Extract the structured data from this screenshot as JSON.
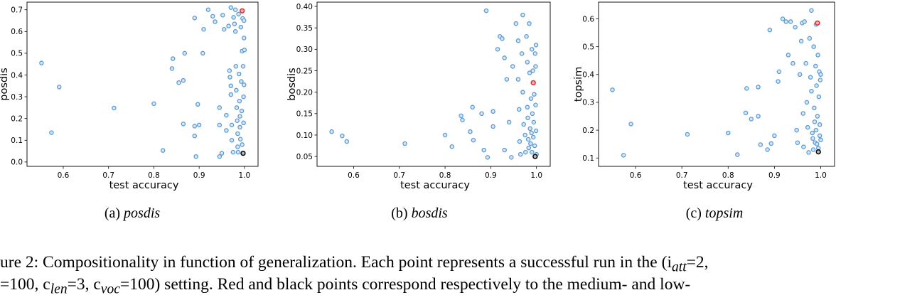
{
  "figure": {
    "caption_line1": "ure 2: Compositionality in function of generalization. Each point represents a successful run in the (i",
    "caption_line1_sub": "att",
    "caption_line1_end": "=2,",
    "caption_line2": "=100, c",
    "caption_line2_sub1": "len",
    "caption_line2_mid": "=3, c",
    "caption_line2_sub2": "voc",
    "caption_line2_end": "=100) setting. Red and black points correspond respectively to the medium- and low-"
  },
  "colors": {
    "point": "#5b9bd5",
    "point_fill": "#d7e7f7",
    "medium": "#e8262c",
    "low": "#000000"
  },
  "chart_data": [
    {
      "type": "scatter",
      "panel": "a",
      "subcaption_prefix": "(a)",
      "subcaption_name": "posdis",
      "xlabel": "test accuracy",
      "ylabel": "posdis",
      "xlim": [
        0.52,
        1.03
      ],
      "ylim": [
        -0.02,
        0.735
      ],
      "xticks": [
        0.6,
        0.7,
        0.8,
        0.9,
        1.0
      ],
      "yticks": [
        0.0,
        0.1,
        0.2,
        0.3,
        0.4,
        0.5,
        0.6,
        0.7
      ],
      "points": [
        [
          0.552,
          0.455
        ],
        [
          0.591,
          0.345
        ],
        [
          0.574,
          0.135
        ],
        [
          0.712,
          0.248
        ],
        [
          0.8,
          0.268
        ],
        [
          0.82,
          0.053
        ],
        [
          0.842,
          0.475
        ],
        [
          0.84,
          0.43
        ],
        [
          0.855,
          0.365
        ],
        [
          0.865,
          0.375
        ],
        [
          0.868,
          0.5
        ],
        [
          0.865,
          0.175
        ],
        [
          0.89,
          0.165
        ],
        [
          0.89,
          0.12
        ],
        [
          0.893,
          0.025
        ],
        [
          0.897,
          0.265
        ],
        [
          0.9,
          0.17
        ],
        [
          0.908,
          0.5
        ],
        [
          0.89,
          0.662
        ],
        [
          0.91,
          0.61
        ],
        [
          0.92,
          0.7
        ],
        [
          0.93,
          0.67
        ],
        [
          0.935,
          0.645
        ],
        [
          0.945,
          0.25
        ],
        [
          0.945,
          0.17
        ],
        [
          0.945,
          0.025
        ],
        [
          0.95,
          0.04
        ],
        [
          0.952,
          0.675
        ],
        [
          0.955,
          0.61
        ],
        [
          0.96,
          0.215
        ],
        [
          0.96,
          0.145
        ],
        [
          0.965,
          0.625
        ],
        [
          0.967,
          0.42
        ],
        [
          0.968,
          0.39
        ],
        [
          0.97,
          0.71
        ],
        [
          0.97,
          0.35
        ],
        [
          0.97,
          0.31
        ],
        [
          0.972,
          0.17
        ],
        [
          0.972,
          0.1
        ],
        [
          0.975,
          0.045
        ],
        [
          0.976,
          0.665
        ],
        [
          0.978,
          0.635
        ],
        [
          0.98,
          0.7
        ],
        [
          0.98,
          0.6
        ],
        [
          0.981,
          0.44
        ],
        [
          0.982,
          0.33
        ],
        [
          0.983,
          0.25
        ],
        [
          0.984,
          0.19
        ],
        [
          0.985,
          0.13
        ],
        [
          0.985,
          0.07
        ],
        [
          0.986,
          0.045
        ],
        [
          0.987,
          0.68
        ],
        [
          0.988,
          0.405
        ],
        [
          0.989,
          0.28
        ],
        [
          0.99,
          0.21
        ],
        [
          0.99,
          0.16
        ],
        [
          0.991,
          0.105
        ],
        [
          0.992,
          0.62
        ],
        [
          0.993,
          0.37
        ],
        [
          0.994,
          0.235
        ],
        [
          0.995,
          0.51
        ],
        [
          0.995,
          0.08
        ],
        [
          0.996,
          0.66
        ],
        [
          0.997,
          0.44
        ],
        [
          0.998,
          0.3
        ],
        [
          0.998,
          0.18
        ],
        [
          0.999,
          0.65
        ],
        [
          0.999,
          0.57
        ],
        [
          0.999,
          0.355
        ],
        [
          1.0,
          0.515
        ]
      ],
      "highlight_medium": [
        0.995,
        0.695
      ],
      "highlight_low": [
        0.997,
        0.04
      ]
    },
    {
      "type": "scatter",
      "panel": "b",
      "subcaption_prefix": "(b)",
      "subcaption_name": "bosdis",
      "xlabel": "test accuracy",
      "ylabel": "bosdis",
      "xlim": [
        0.52,
        1.03
      ],
      "ylim": [
        0.027,
        0.41
      ],
      "xticks": [
        0.6,
        0.7,
        0.8,
        0.9,
        1.0
      ],
      "yticks": [
        0.05,
        0.1,
        0.15,
        0.2,
        0.25,
        0.3,
        0.35,
        0.4
      ],
      "points": [
        [
          0.552,
          0.108
        ],
        [
          0.575,
          0.098
        ],
        [
          0.585,
          0.085
        ],
        [
          0.712,
          0.08
        ],
        [
          0.8,
          0.1
        ],
        [
          0.815,
          0.073
        ],
        [
          0.835,
          0.145
        ],
        [
          0.838,
          0.135
        ],
        [
          0.86,
          0.165
        ],
        [
          0.855,
          0.108
        ],
        [
          0.862,
          0.088
        ],
        [
          0.88,
          0.15
        ],
        [
          0.885,
          0.065
        ],
        [
          0.89,
          0.39
        ],
        [
          0.893,
          0.048
        ],
        [
          0.905,
          0.155
        ],
        [
          0.905,
          0.12
        ],
        [
          0.915,
          0.3
        ],
        [
          0.92,
          0.33
        ],
        [
          0.925,
          0.325
        ],
        [
          0.93,
          0.28
        ],
        [
          0.93,
          0.065
        ],
        [
          0.935,
          0.23
        ],
        [
          0.94,
          0.13
        ],
        [
          0.945,
          0.048
        ],
        [
          0.948,
          0.26
        ],
        [
          0.955,
          0.36
        ],
        [
          0.96,
          0.32
        ],
        [
          0.96,
          0.23
        ],
        [
          0.962,
          0.16
        ],
        [
          0.963,
          0.085
        ],
        [
          0.965,
          0.055
        ],
        [
          0.968,
          0.29
        ],
        [
          0.97,
          0.38
        ],
        [
          0.97,
          0.2
        ],
        [
          0.972,
          0.125
        ],
        [
          0.975,
          0.1
        ],
        [
          0.976,
          0.06
        ],
        [
          0.978,
          0.33
        ],
        [
          0.98,
          0.27
        ],
        [
          0.98,
          0.165
        ],
        [
          0.981,
          0.14
        ],
        [
          0.982,
          0.09
        ],
        [
          0.983,
          0.07
        ],
        [
          0.984,
          0.36
        ],
        [
          0.985,
          0.245
        ],
        [
          0.986,
          0.115
        ],
        [
          0.987,
          0.08
        ],
        [
          0.988,
          0.185
        ],
        [
          0.989,
          0.105
        ],
        [
          0.99,
          0.3
        ],
        [
          0.99,
          0.06
        ],
        [
          0.991,
          0.15
        ],
        [
          0.992,
          0.25
        ],
        [
          0.993,
          0.095
        ],
        [
          0.994,
          0.13
        ],
        [
          0.995,
          0.195
        ],
        [
          0.996,
          0.075
        ],
        [
          0.997,
          0.29
        ],
        [
          0.998,
          0.26
        ],
        [
          0.998,
          0.17
        ],
        [
          0.999,
          0.31
        ],
        [
          0.999,
          0.11
        ],
        [
          1.0,
          0.055
        ]
      ],
      "highlight_medium": [
        0.993,
        0.222
      ],
      "highlight_low": [
        0.997,
        0.05
      ]
    },
    {
      "type": "scatter",
      "panel": "c",
      "subcaption_prefix": "(c)",
      "subcaption_name": "topsim",
      "xlabel": "test accuracy",
      "ylabel": "topsim",
      "xlim": [
        0.52,
        1.03
      ],
      "ylim": [
        0.07,
        0.66
      ],
      "xticks": [
        0.6,
        0.7,
        0.8,
        0.9,
        1.0
      ],
      "yticks": [
        0.1,
        0.2,
        0.3,
        0.4,
        0.5,
        0.6
      ],
      "points": [
        [
          0.55,
          0.345
        ],
        [
          0.574,
          0.11
        ],
        [
          0.59,
          0.222
        ],
        [
          0.712,
          0.185
        ],
        [
          0.8,
          0.19
        ],
        [
          0.82,
          0.112
        ],
        [
          0.838,
          0.262
        ],
        [
          0.84,
          0.35
        ],
        [
          0.85,
          0.24
        ],
        [
          0.865,
          0.355
        ],
        [
          0.865,
          0.25
        ],
        [
          0.87,
          0.148
        ],
        [
          0.885,
          0.13
        ],
        [
          0.89,
          0.56
        ],
        [
          0.893,
          0.152
        ],
        [
          0.9,
          0.18
        ],
        [
          0.908,
          0.375
        ],
        [
          0.91,
          0.41
        ],
        [
          0.918,
          0.6
        ],
        [
          0.925,
          0.59
        ],
        [
          0.93,
          0.47
        ],
        [
          0.935,
          0.59
        ],
        [
          0.94,
          0.44
        ],
        [
          0.945,
          0.57
        ],
        [
          0.948,
          0.2
        ],
        [
          0.95,
          0.155
        ],
        [
          0.955,
          0.4
        ],
        [
          0.958,
          0.52
        ],
        [
          0.96,
          0.585
        ],
        [
          0.962,
          0.26
        ],
        [
          0.963,
          0.14
        ],
        [
          0.965,
          0.59
        ],
        [
          0.968,
          0.44
        ],
        [
          0.97,
          0.3
        ],
        [
          0.972,
          0.21
        ],
        [
          0.974,
          0.12
        ],
        [
          0.976,
          0.53
        ],
        [
          0.978,
          0.39
        ],
        [
          0.98,
          0.63
        ],
        [
          0.98,
          0.34
        ],
        [
          0.982,
          0.19
        ],
        [
          0.983,
          0.17
        ],
        [
          0.984,
          0.13
        ],
        [
          0.985,
          0.5
        ],
        [
          0.986,
          0.28
        ],
        [
          0.987,
          0.23
        ],
        [
          0.988,
          0.155
        ],
        [
          0.989,
          0.43
        ],
        [
          0.99,
          0.58
        ],
        [
          0.99,
          0.2
        ],
        [
          0.991,
          0.36
        ],
        [
          0.992,
          0.15
        ],
        [
          0.993,
          0.25
        ],
        [
          0.994,
          0.47
        ],
        [
          0.995,
          0.135
        ],
        [
          0.996,
          0.32
        ],
        [
          0.997,
          0.41
        ],
        [
          0.998,
          0.18
        ],
        [
          0.998,
          0.22
        ],
        [
          0.999,
          0.38
        ],
        [
          1.0,
          0.4
        ],
        [
          1.0,
          0.165
        ]
      ],
      "highlight_medium": [
        0.993,
        0.585
      ],
      "highlight_low": [
        0.995,
        0.122
      ]
    }
  ]
}
